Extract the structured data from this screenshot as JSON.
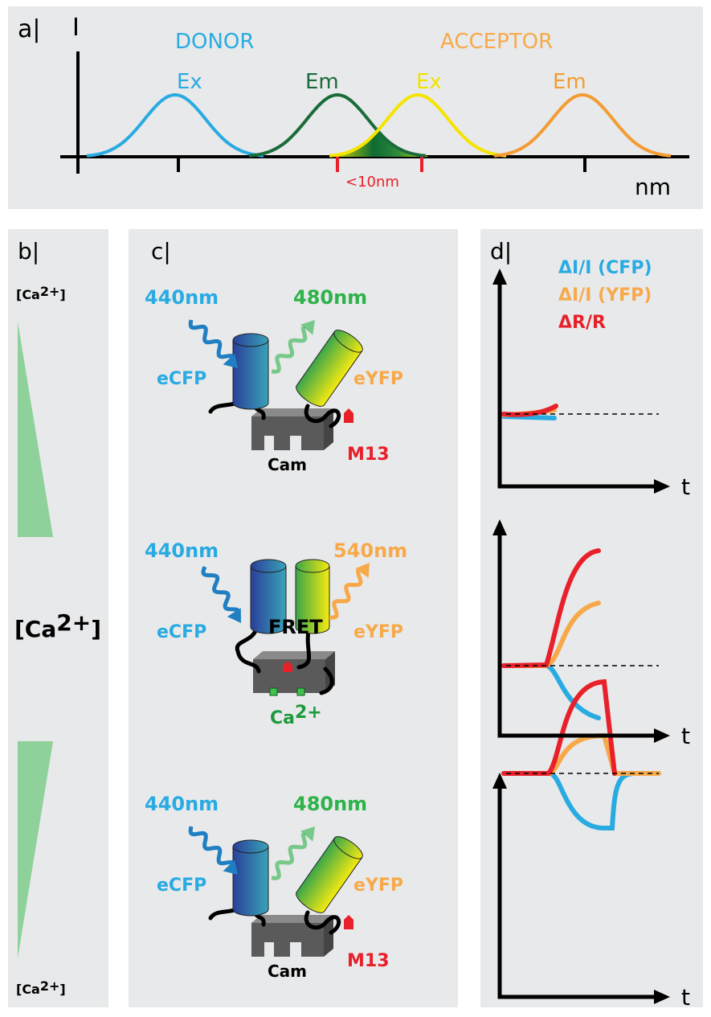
{
  "panel_a": {
    "label": "a|",
    "y_axis_label": "I",
    "x_axis_label": "nm",
    "donor": "DONOR",
    "donor_ex": "Ex",
    "donor_em": "Em",
    "acceptor": "ACCEPTOR",
    "acceptor_ex": "Ex",
    "acceptor_em": "Em",
    "distance": "<10nm"
  },
  "panel_b": {
    "label": "b|",
    "ca_top": {
      "base": "[Ca",
      "sup": "2+",
      "close": "]"
    },
    "ca_middle": {
      "base": "[Ca",
      "sup": "2+",
      "close": "]"
    },
    "ca_bottom": {
      "base": "[Ca",
      "sup": "2+",
      "close": "]"
    }
  },
  "panel_c": {
    "label": "c|",
    "states": [
      {
        "excitation": "440nm",
        "emission": "480nm",
        "donor": "eCFP",
        "acceptor": "eYFP",
        "peptide": "M13",
        "calmodulin": "Cam"
      },
      {
        "excitation": "440nm",
        "emission": "540nm",
        "donor": "eCFP",
        "acceptor": "eYFP",
        "fret": "FRET",
        "calcium": {
          "base": "Ca",
          "sup": "2+"
        }
      },
      {
        "excitation": "440nm",
        "emission": "480nm",
        "donor": "eCFP",
        "acceptor": "eYFP",
        "peptide": "M13",
        "calmodulin": "Cam"
      }
    ]
  },
  "panel_d": {
    "label": "d|",
    "legend": [
      "ΔI/I (CFP)",
      "ΔI/I (YFP)",
      "ΔR/R"
    ],
    "time_labels": [
      "t",
      "t",
      "t"
    ]
  }
}
